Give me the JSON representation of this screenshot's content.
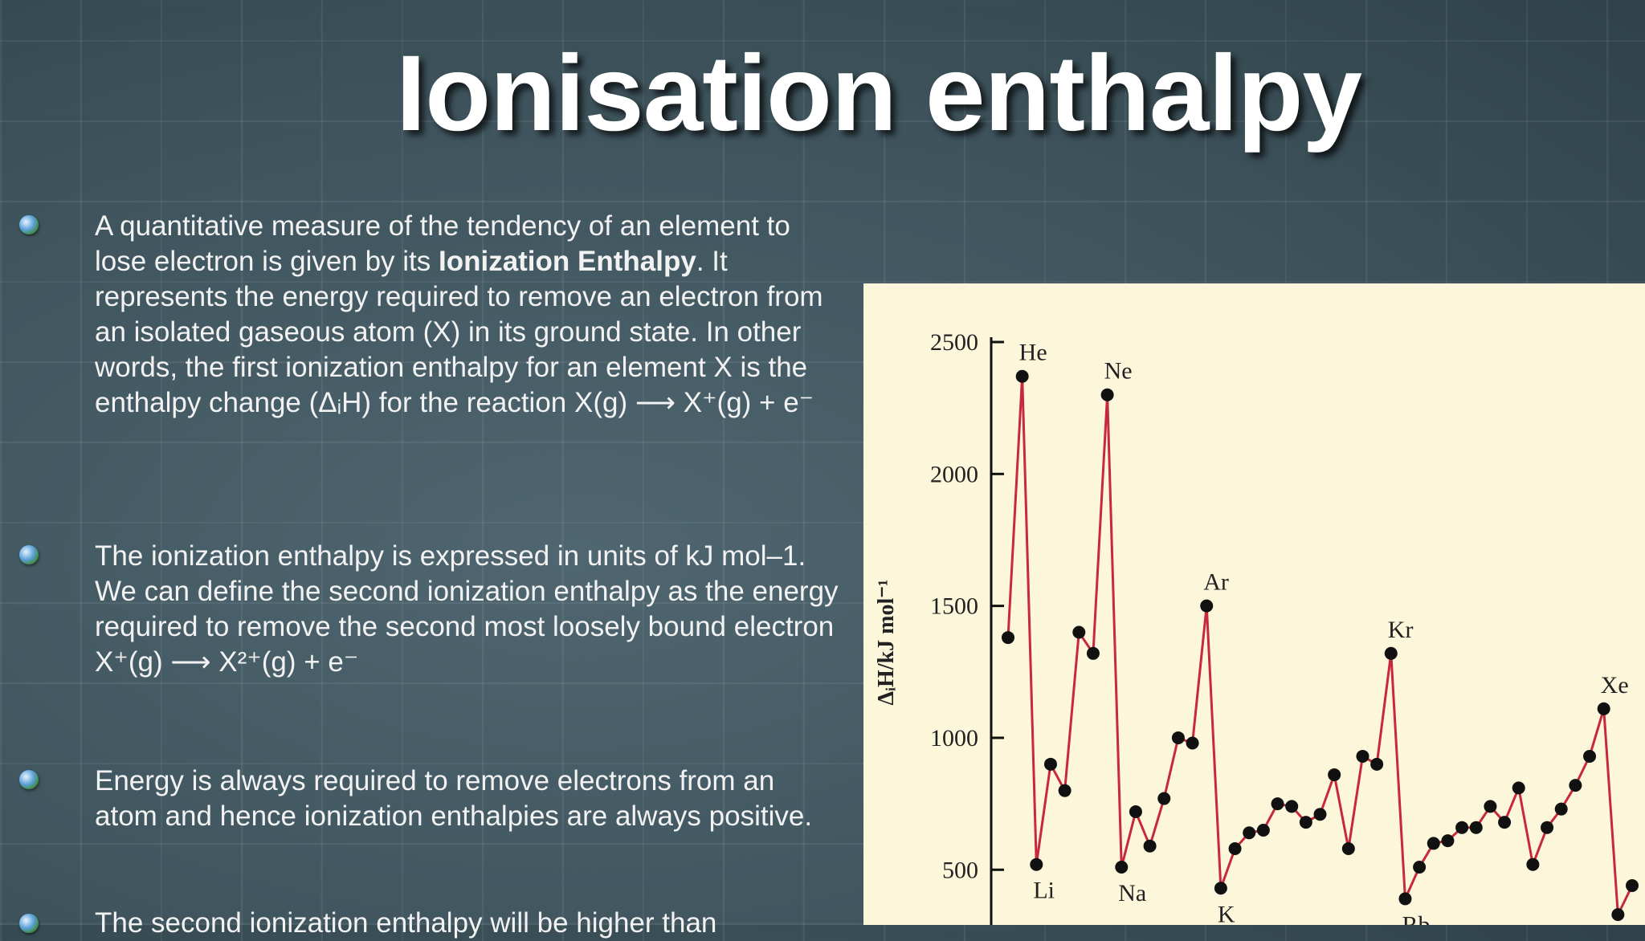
{
  "slide": {
    "title": "Ionisation enthalpy",
    "bullets": [
      {
        "before": "A quantitative measure of the tendency of an element to lose electron is given by its ",
        "bold": "Ionization Enthalpy",
        "after": ". It represents the energy required to remove an electron from an isolated gaseous atom (X) in its ground state. In other words, the first ionization enthalpy for an element X is the enthalpy change (ΔᵢH) for the reaction X(g) ⟶ X⁺(g) + e⁻"
      },
      {
        "text": "The ionization enthalpy is expressed in units of kJ mol–1. We can define the second ionization enthalpy as the energy required to remove the second most loosely bound electron",
        "equation": "X⁺(g) ⟶ X²⁺(g) + e⁻"
      },
      {
        "text": "Energy is always required to remove electrons from an atom and hence ionization enthalpies are always positive."
      },
      {
        "text": "The second ionization enthalpy will be higher than"
      }
    ]
  },
  "chart_data": {
    "type": "line",
    "y_label": "ΔᵢH/kJ mol⁻¹",
    "categories": [
      null,
      "He",
      "Li",
      null,
      null,
      null,
      null,
      "Ne",
      "Na",
      null,
      null,
      null,
      null,
      null,
      "Ar",
      "K",
      null,
      null,
      null,
      null,
      null,
      null,
      null,
      null,
      null,
      null,
      null,
      "Kr",
      "Rb",
      null,
      null,
      null,
      null,
      null,
      null,
      null,
      null,
      null,
      null,
      null,
      null,
      null,
      "Xe",
      null,
      null
    ],
    "values": [
      1380,
      2370,
      520,
      900,
      800,
      1400,
      1320,
      2300,
      510,
      720,
      590,
      770,
      1000,
      980,
      1500,
      430,
      580,
      640,
      650,
      750,
      740,
      680,
      710,
      860,
      580,
      930,
      900,
      1320,
      390,
      510,
      600,
      610,
      660,
      660,
      740,
      680,
      810,
      520,
      660,
      730,
      820,
      930,
      1110,
      330,
      440
    ],
    "color": "#c8283c",
    "marker_color": "#111111",
    "ylim": [
      300,
      2500
    ],
    "yticks": [
      500,
      1000,
      1500,
      2000,
      2500
    ]
  }
}
